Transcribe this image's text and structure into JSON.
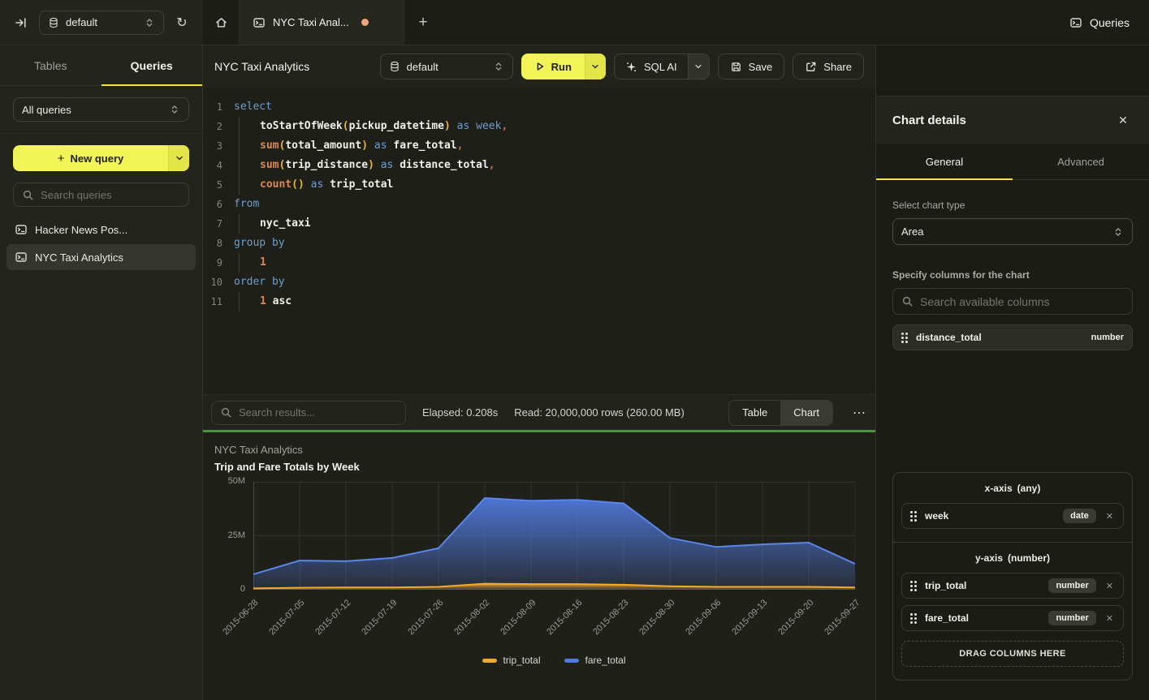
{
  "colors": {
    "accent_yellow": "#f1f356",
    "tab_underline_yellow": "#f0e542",
    "status_green": "#4d9440",
    "unsaved_dot": "#f0a478",
    "trip_total_series": "#f0a928",
    "fare_total_series": "#4f7bd9"
  },
  "topbar": {
    "db_selector": "default",
    "tab_title": "NYC Taxi Anal...",
    "queries_button": "Queries"
  },
  "sidebar": {
    "tabs": [
      {
        "label": "Tables",
        "active": false
      },
      {
        "label": "Queries",
        "active": true
      }
    ],
    "filter_value": "All queries",
    "new_query_button": "New query",
    "search_placeholder": "Search queries",
    "items": [
      {
        "label": "Hacker News Pos...",
        "active": false
      },
      {
        "label": "NYC Taxi Analytics",
        "active": true
      }
    ]
  },
  "editor": {
    "title": "NYC Taxi Analytics",
    "db_selector": "default",
    "run_button": "Run",
    "sql_ai_button": "SQL AI",
    "save_button": "Save",
    "share_button": "Share",
    "code_lines": [
      [
        [
          "kw",
          "select"
        ]
      ],
      [
        [
          "ind",
          ""
        ],
        [
          "id",
          "toStartOfWeek"
        ],
        [
          "par",
          "("
        ],
        [
          "id",
          "pickup_datetime"
        ],
        [
          "par",
          ")"
        ],
        [
          "sp",
          " "
        ],
        [
          "kw",
          "as"
        ],
        [
          "sp",
          " "
        ],
        [
          "kw",
          "week"
        ],
        [
          "pun",
          ","
        ]
      ],
      [
        [
          "ind",
          ""
        ],
        [
          "fn",
          "sum"
        ],
        [
          "par",
          "("
        ],
        [
          "id",
          "total_amount"
        ],
        [
          "par",
          ")"
        ],
        [
          "sp",
          " "
        ],
        [
          "kw",
          "as"
        ],
        [
          "sp",
          " "
        ],
        [
          "id",
          "fare_total"
        ],
        [
          "pun",
          ","
        ]
      ],
      [
        [
          "ind",
          ""
        ],
        [
          "fn",
          "sum"
        ],
        [
          "par",
          "("
        ],
        [
          "id",
          "trip_distance"
        ],
        [
          "par",
          ")"
        ],
        [
          "sp",
          " "
        ],
        [
          "kw",
          "as"
        ],
        [
          "sp",
          " "
        ],
        [
          "id",
          "distance_total"
        ],
        [
          "pun",
          ","
        ]
      ],
      [
        [
          "ind",
          ""
        ],
        [
          "fn",
          "count"
        ],
        [
          "par",
          "()"
        ],
        [
          "sp",
          " "
        ],
        [
          "kw",
          "as"
        ],
        [
          "sp",
          " "
        ],
        [
          "id",
          "trip_total"
        ]
      ],
      [
        [
          "kw",
          "from"
        ]
      ],
      [
        [
          "ind",
          ""
        ],
        [
          "id",
          "nyc_taxi"
        ]
      ],
      [
        [
          "kw",
          "group by"
        ]
      ],
      [
        [
          "ind",
          ""
        ],
        [
          "num",
          "1"
        ]
      ],
      [
        [
          "kw",
          "order by"
        ]
      ],
      [
        [
          "ind",
          ""
        ],
        [
          "num",
          "1"
        ],
        [
          "sp",
          " "
        ],
        [
          "id",
          "asc"
        ]
      ]
    ]
  },
  "results": {
    "search_placeholder": "Search results...",
    "elapsed": "Elapsed: 0.208s",
    "read": "Read: 20,000,000 rows (260.00 MB)",
    "view_toggle": [
      "Table",
      "Chart"
    ],
    "active_view": "Chart",
    "more_button": "⋯"
  },
  "chart_data": {
    "type": "area",
    "title": "NYC Taxi Analytics",
    "subtitle": "Trip and Fare Totals by Week",
    "x": [
      "2015-06-28",
      "2015-07-05",
      "2015-07-12",
      "2015-07-19",
      "2015-07-26",
      "2015-08-02",
      "2015-08-09",
      "2015-08-16",
      "2015-08-23",
      "2015-08-30",
      "2015-09-06",
      "2015-09-13",
      "2015-09-20",
      "2015-09-27"
    ],
    "series": [
      {
        "name": "trip_total",
        "line_color": "#f0a928",
        "unit": "millions",
        "values_millions": [
          0.6,
          0.9,
          1.0,
          1.0,
          1.3,
          2.8,
          2.6,
          2.6,
          2.3,
          1.6,
          1.3,
          1.3,
          1.3,
          1.0
        ]
      },
      {
        "name": "fare_total",
        "line_color": "#4f7bd9",
        "unit": "millions",
        "values_millions": [
          7.1,
          13.5,
          13.2,
          14.7,
          19.2,
          42.5,
          41.2,
          41.6,
          40.0,
          24.0,
          19.8,
          21.0,
          21.8,
          12.0
        ]
      }
    ],
    "ylim_millions": [
      0,
      50
    ],
    "yticks": [
      {
        "value_millions": 0,
        "label": "0"
      },
      {
        "value_millions": 25,
        "label": "25M"
      },
      {
        "value_millions": 50,
        "label": "50M"
      }
    ],
    "xlabel_rotation": -45,
    "grid": true,
    "legend_position": "bottom"
  },
  "chart_panel": {
    "title": "Chart details",
    "tabs": [
      {
        "label": "General",
        "active": true
      },
      {
        "label": "Advanced",
        "active": false
      }
    ],
    "chart_type_label": "Select chart type",
    "chart_type_value": "Area",
    "columns_label": "Specify columns for the chart",
    "columns_search_placeholder": "Search available columns",
    "available_columns": [
      {
        "name": "distance_total",
        "type": "number"
      }
    ],
    "x_axis": {
      "title": "x-axis",
      "qualifier": "(any)",
      "columns": [
        {
          "name": "week",
          "type": "date"
        }
      ]
    },
    "y_axis": {
      "title": "y-axis",
      "qualifier": "(number)",
      "columns": [
        {
          "name": "trip_total",
          "type": "number"
        },
        {
          "name": "fare_total",
          "type": "number"
        }
      ]
    },
    "drop_zone": "DRAG COLUMNS HERE"
  }
}
